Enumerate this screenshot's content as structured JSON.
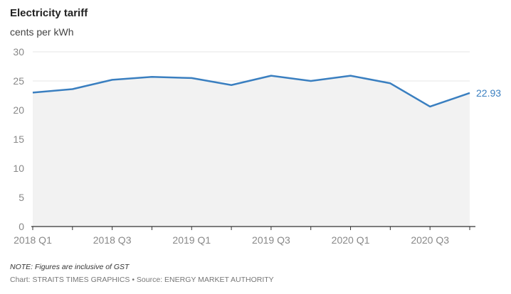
{
  "header": {
    "title": "Electricity tariff",
    "subtitle": "cents per kWh"
  },
  "footer": {
    "note": "NOTE: Figures are inclusive of GST",
    "source": "Chart: STRAITS TIMES GRAPHICS • Source: ENERGY MARKET AUTHORITY"
  },
  "colors": {
    "line": "#3a7fc0",
    "area": "#f2f2f2",
    "grid": "#e6e6e6",
    "axis": "#333333"
  },
  "chart_data": {
    "type": "line",
    "title": "Electricity tariff",
    "ylabel": "cents per kWh",
    "xlabel": "",
    "x": [
      "2018 Q1",
      "2018 Q2",
      "2018 Q3",
      "2018 Q4",
      "2019 Q1",
      "2019 Q2",
      "2019 Q3",
      "2019 Q4",
      "2020 Q1",
      "2020 Q2",
      "2020 Q3",
      "2020 Q4"
    ],
    "x_tick_labels": [
      "2018 Q1",
      "2018 Q3",
      "2019 Q1",
      "2019 Q3",
      "2020 Q1",
      "2020 Q3"
    ],
    "series": [
      {
        "values": [
          23.0,
          23.6,
          25.2,
          25.7,
          25.5,
          24.3,
          25.9,
          25.0,
          25.9,
          24.6,
          20.6,
          22.93
        ]
      }
    ],
    "ylim": [
      0,
      30
    ],
    "yticks": [
      0,
      5,
      10,
      15,
      20,
      25,
      30
    ],
    "end_label": "22.93",
    "grid": true,
    "area_fill": true
  }
}
